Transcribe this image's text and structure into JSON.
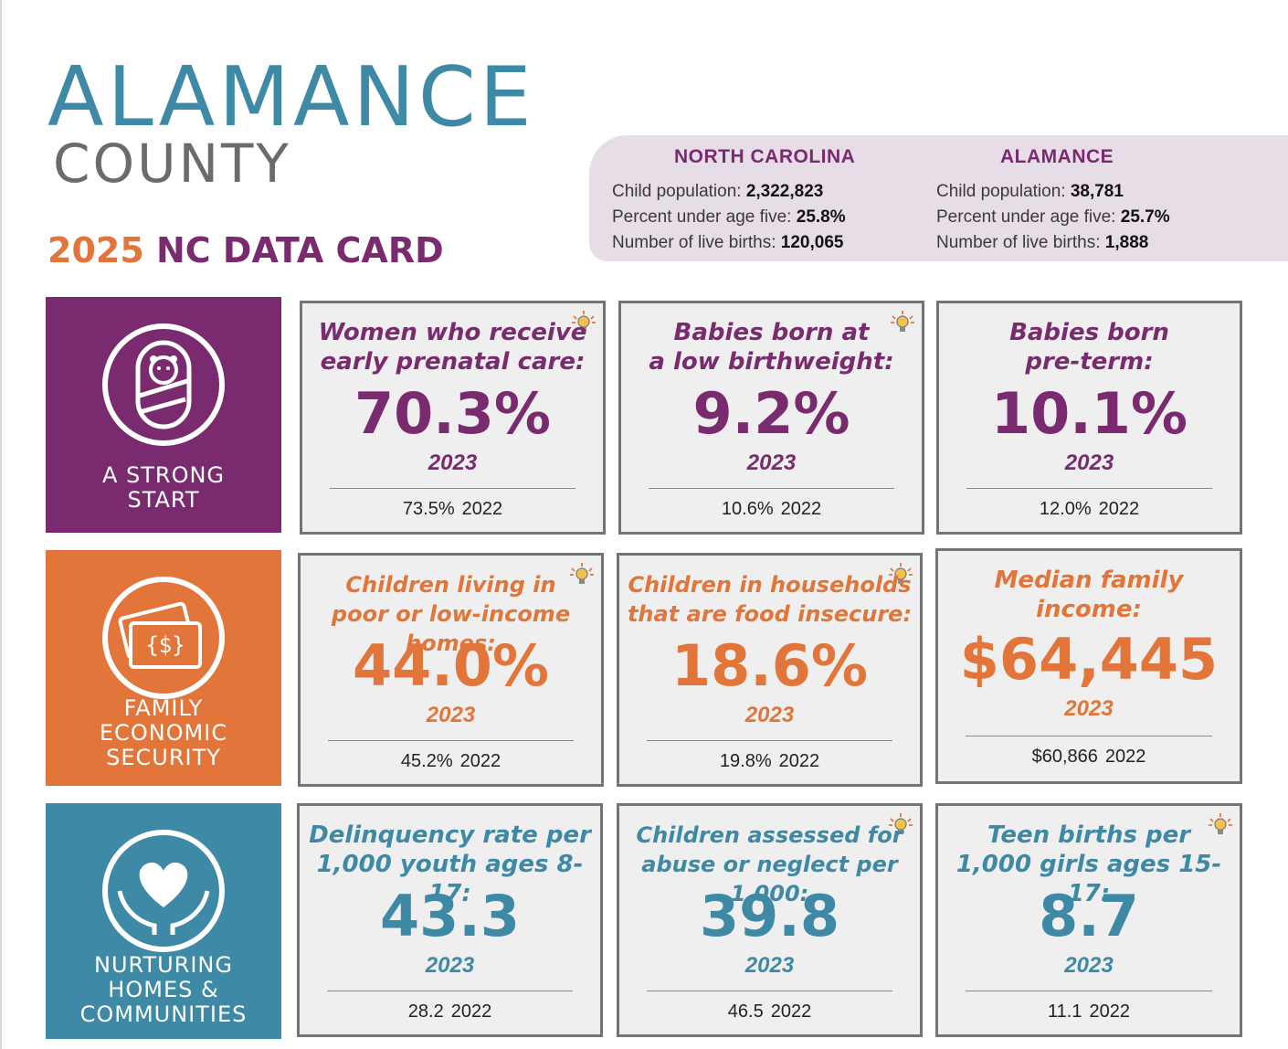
{
  "header": {
    "county": "ALAMANCE",
    "county_sub": "COUNTY",
    "card_year": "2025",
    "card_label": "NC DATA CARD"
  },
  "stats_panel": {
    "nc": {
      "heading": "NORTH CAROLINA",
      "child_population_label": "Child population:",
      "child_population": "2,322,823",
      "under_five_label": "Percent under age five:",
      "under_five": "25.8%",
      "live_births_label": "Number of live births:",
      "live_births": "120,065"
    },
    "county": {
      "heading": "ALAMANCE",
      "child_population_label": "Child population:",
      "child_population": "38,781",
      "under_five_label": "Percent under age five:",
      "under_five": "25.7%",
      "live_births_label": "Number of live births:",
      "live_births": "1,888"
    }
  },
  "colors": {
    "purple": "#7a2a6e",
    "orange": "#e2763a",
    "teal": "#3e8aa6",
    "panel": "#e7dde7",
    "box_bg": "#efefef",
    "box_border": "#747474"
  },
  "domains": [
    {
      "name_lines": [
        "A STRONG",
        "START"
      ],
      "icon": "swaddled-baby-icon",
      "stats": [
        {
          "label_lines": [
            "Women who receive",
            "early prenatal care:"
          ],
          "value": "70.3%",
          "year": "2023",
          "prev_value": "73.5%",
          "prev_year": "2022"
        },
        {
          "label_lines": [
            "Babies born at",
            "a low birthweight:"
          ],
          "value": "9.2%",
          "year": "2023",
          "prev_value": "10.6%",
          "prev_year": "2022"
        },
        {
          "label_lines": [
            "Babies born",
            "pre-term:"
          ],
          "value": "10.1%",
          "year": "2023",
          "prev_value": "12.0%",
          "prev_year": "2022"
        }
      ]
    },
    {
      "name_lines": [
        "FAMILY",
        "ECONOMIC",
        "SECURITY"
      ],
      "icon": "money-bills-icon",
      "stats": [
        {
          "label_lines": [
            "Children living in",
            "poor or low-income homes:"
          ],
          "value": "44.0%",
          "year": "2023",
          "prev_value": "45.2%",
          "prev_year": "2022"
        },
        {
          "label_lines": [
            "Children in households",
            "that are food insecure:"
          ],
          "value": "18.6%",
          "year": "2023",
          "prev_value": "19.8%",
          "prev_year": "2022"
        },
        {
          "label_lines": [
            "Median family",
            "income:"
          ],
          "value": "$64,445",
          "year": "2023",
          "prev_value": "$60,866",
          "prev_year": "2022"
        }
      ]
    },
    {
      "name_lines": [
        "NURTURING",
        "HOMES &",
        "COMMUNITIES"
      ],
      "icon": "heart-hands-icon",
      "stats": [
        {
          "label_lines": [
            "Delinquency rate per",
            "1,000 youth ages 8-17:"
          ],
          "value": "43.3",
          "year": "2023",
          "prev_value": "28.2",
          "prev_year": "2022"
        },
        {
          "label_lines": [
            "Children assessed for",
            "abuse or neglect per 1,000:"
          ],
          "value": "39.8",
          "year": "2023",
          "prev_value": "46.5",
          "prev_year": "2022"
        },
        {
          "label_lines": [
            "Teen births per",
            "1,000 girls ages 15-17:"
          ],
          "value": "8.7",
          "year": "2023",
          "prev_value": "11.1",
          "prev_year": "2022"
        }
      ]
    }
  ]
}
